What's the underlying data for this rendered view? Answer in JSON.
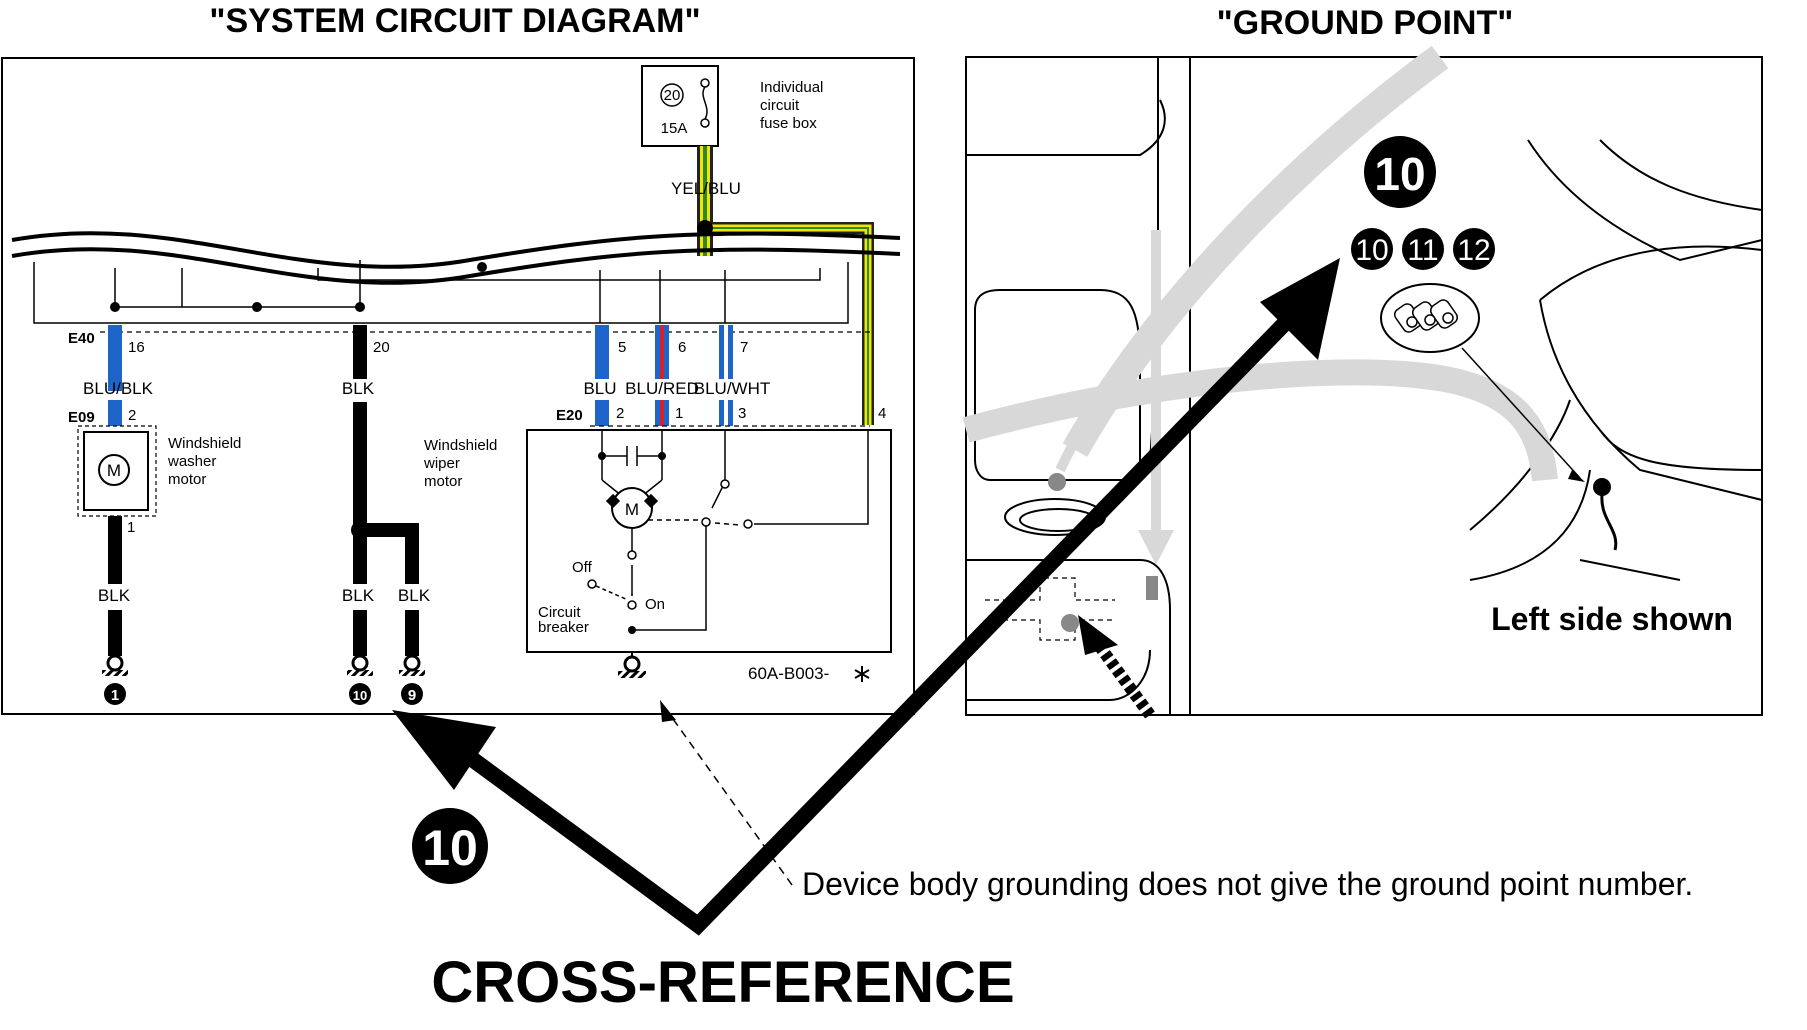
{
  "titles": {
    "circuit": "\"SYSTEM CIRCUIT DIAGRAM\"",
    "ground": "\"GROUND POINT\""
  },
  "fuse_box": {
    "number": "20",
    "rating": "15A",
    "label_lines": [
      "Individual",
      "circuit",
      "fuse box"
    ]
  },
  "wires": {
    "yel_blu": "YEL/BLU",
    "blu_blk": "BLU/BLK",
    "blk": "BLK",
    "blu": "BLU",
    "blu_red": "BLU/RED",
    "blu_wht": "BLU/WHT"
  },
  "connectors": {
    "e40": "E40",
    "e09": "E09",
    "e20": "E20"
  },
  "pins": {
    "p16": "16",
    "p20": "20",
    "p5": "5",
    "p6": "6",
    "p7": "7",
    "e09_2": "2",
    "e09_1": "1",
    "e20_2": "2",
    "e20_1": "1",
    "e20_3": "3",
    "e20_4": "4"
  },
  "components": {
    "washer_motor": [
      "Windshield",
      "washer",
      "motor"
    ],
    "wiper_motor": [
      "Windshield",
      "wiper",
      "motor"
    ],
    "motor_symbol": "M",
    "off": "Off",
    "on": "On",
    "breaker": [
      "Circuit",
      "breaker"
    ]
  },
  "grounds": {
    "g1": "1",
    "g10": "10",
    "g9": "9"
  },
  "diagram_code": "60A-B003-",
  "ground_point": {
    "big_number": "10",
    "numbers": [
      "10",
      "11",
      "12"
    ],
    "caption": "Left side shown"
  },
  "callouts": {
    "ref_number": "10",
    "note": "Device body grounding does not give the ground point number.",
    "cross_reference": "CROSS-REFERENCE"
  }
}
